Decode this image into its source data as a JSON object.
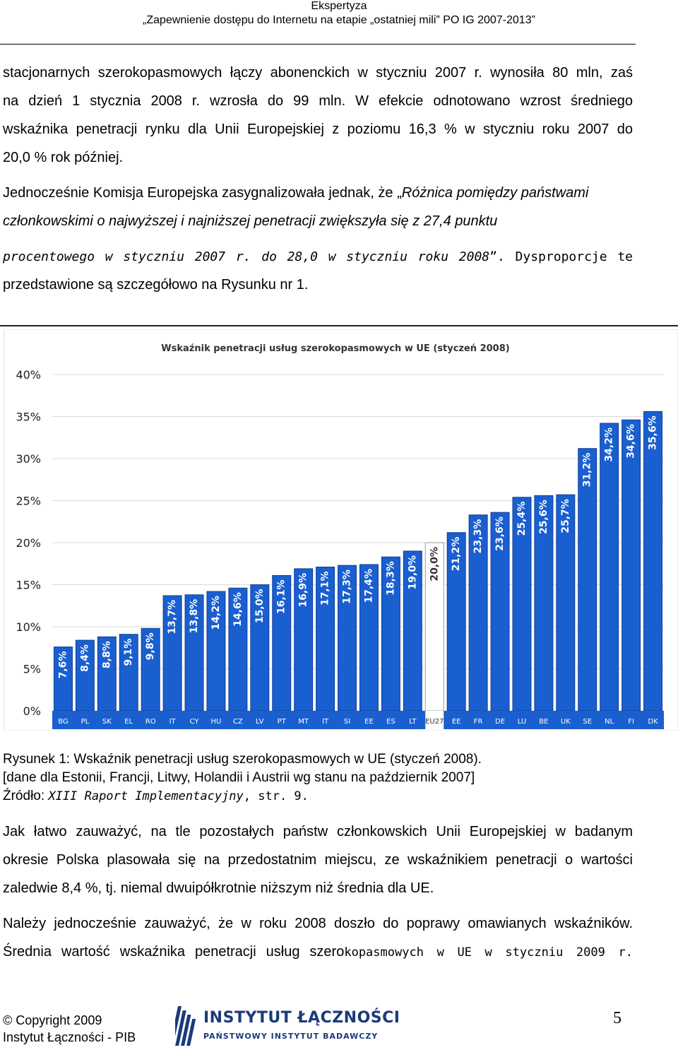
{
  "header": {
    "line1": "Ekspertyza",
    "line2": "„Zapewnienie dostępu do Internetu na etapie „ostatniej mili” PO IG 2007-2013”"
  },
  "body": {
    "p1": [
      "stacjonarnych szerokopasmowych łączy abonenckich w styczniu 2007 r. wynosiła 80 mln, zaś",
      "na dzień 1 stycznia 2008 r. wzrosła do 99 mln. W efekcie odnotowano wzrost średniego",
      "wskaźnika penetracji rynku dla Unii Europejskiej z poziomu 16,3 % w styczniu roku 2007 do",
      "20,0 % rok później."
    ],
    "p2_intro": "Jednocześnie Komisja Europejska zasygnalizowała jednak, że „",
    "p2_quote_a": "Różnica pomiędzy państwami",
    "p2_quote_b": "członkowskimi o najwyższej i najniższej penetracji zwiększyła się z 27,4 punktu",
    "p2_quote_c": "procentowego w styczniu 2007 r. do 28,0 w styczniu roku 2008",
    "p2_after": "”. Dysproporcje te",
    "p2_end": "przedstawione są szczegółowo na Rysunku nr 1."
  },
  "chart_data": {
    "type": "bar",
    "title": "Wskaźnik penetracji usług szerokopasmowych w UE (styczeń 2008)",
    "categories": [
      "BG",
      "PL",
      "SK",
      "EL",
      "RO",
      "IT",
      "CY",
      "HU",
      "CZ",
      "LV",
      "PT",
      "MT",
      "IT",
      "SI",
      "EE",
      "ES",
      "LT",
      "EU27",
      "EE",
      "FR",
      "DE",
      "LU",
      "BE",
      "UK",
      "SE",
      "NL",
      "FI",
      "DK"
    ],
    "values": [
      7.6,
      8.4,
      8.8,
      9.1,
      9.8,
      13.7,
      13.8,
      14.2,
      14.6,
      15.0,
      16.1,
      16.9,
      17.1,
      17.3,
      17.4,
      18.3,
      19.0,
      20.0,
      21.2,
      23.3,
      23.6,
      25.4,
      25.6,
      25.7,
      31.2,
      34.2,
      34.6,
      35.6
    ],
    "labels": [
      "7,6%",
      "8,4%",
      "8,8%",
      "9,1%",
      "9,8%",
      "13,7%",
      "13,8%",
      "14,2%",
      "14,6%",
      "15,0%",
      "16,1%",
      "16,9%",
      "17,1%",
      "17,3%",
      "17,4%",
      "18,3%",
      "19,0%",
      "20,0%",
      "21,2%",
      "23,3%",
      "23,6%",
      "25,4%",
      "25,6%",
      "25,7%",
      "31,2%",
      "34,2%",
      "34,6%",
      "35,6%"
    ],
    "highlight_index": 17,
    "ylim": [
      0,
      40
    ],
    "yticks": [
      "0%",
      "5%",
      "10%",
      "15%",
      "20%",
      "25%",
      "30%",
      "35%",
      "40%"
    ],
    "bar_color": "#1a5fd0",
    "highlight_color": "#ffffff"
  },
  "caption": {
    "line1": "Rysunek 1: Wskaźnik penetracji usług szerokopasmowych w UE (styczeń 2008).",
    "line2": "[dane dla Estonii, Francji, Litwy, Holandii i Austrii wg stanu na październik 2007]",
    "line3_a": "Źródło: ",
    "line3_b": "XIII Raport Implementacyjny",
    "line3_c": ", str. 9."
  },
  "body2": {
    "p3": [
      "Jak łatwo zauważyć, na tle pozostałych państw członkowskich Unii Europejskiej w badanym",
      "okresie Polska plasowała się na przedostatnim miejscu, ze wskaźnikiem penetracji o wartości",
      "zaledwie 8,4 %, tj. niemal dwuipółkrotnie niższym niż średnia dla UE."
    ],
    "p4_a": "Należy jednocześnie zauważyć, że w roku 2008 doszło do poprawy omawianych wskaźników.",
    "p4_b1": "Średnia wartość wskaźnika penetracji usług szero",
    "p4_b2": "kopasmowych w UE w styczniu 2009 r."
  },
  "footer": {
    "copyright": "© Copyright 2009",
    "org": "Instytut Łączności - PIB",
    "logo_name": "INSTYTUT ŁĄCZNOŚCI",
    "logo_sub": "PAŃSTWOWY INSTYTUT BADAWCZY",
    "page": "5"
  }
}
